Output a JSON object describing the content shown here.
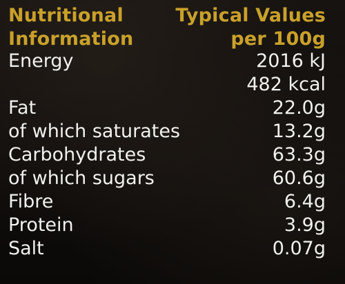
{
  "header": {
    "left_line1": "Nutritional",
    "left_line2": "Information",
    "right_line1": "Typical Values",
    "right_line2": "per 100g"
  },
  "rows": [
    {
      "label": "Energy",
      "value": "2016 kJ"
    },
    {
      "label": "",
      "value": "482 kcal"
    },
    {
      "label": "Fat",
      "value": "22.0g"
    },
    {
      "label": "of which saturates",
      "value": "13.2g"
    },
    {
      "label": "Carbohydrates",
      "value": "63.3g"
    },
    {
      "label": "of which sugars",
      "value": "60.6g"
    },
    {
      "label": "Fibre",
      "value": "6.4g"
    },
    {
      "label": "Protein",
      "value": "3.9g"
    },
    {
      "label": "Salt",
      "value": "0.07g"
    }
  ],
  "colors": {
    "background": "#0d0b09",
    "header_gold": "#c9a12a",
    "text": "#f1f1ef"
  }
}
